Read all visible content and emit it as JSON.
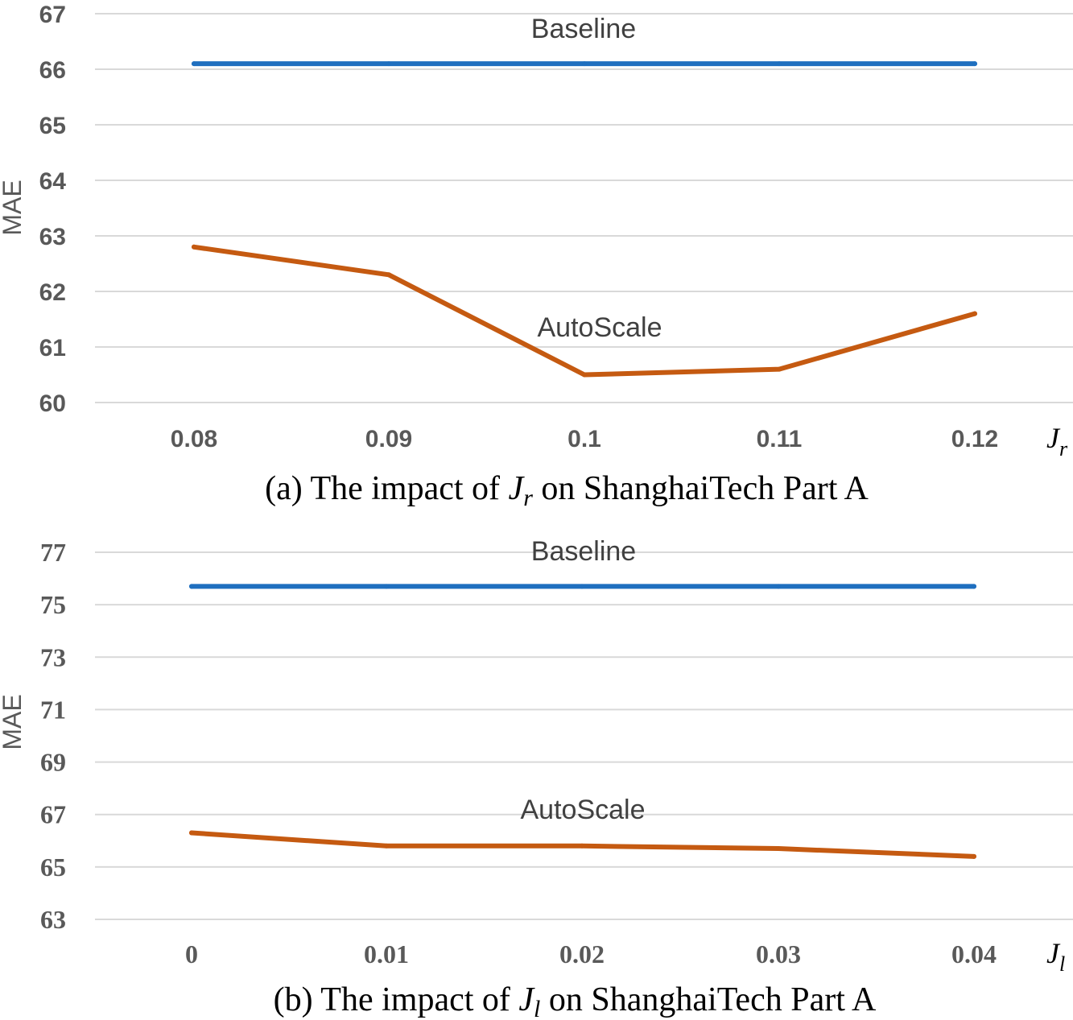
{
  "chart_data": [
    {
      "type": "line",
      "caption": {
        "prefix": "(a) The impact of ",
        "symbol": "J",
        "subscript": "r",
        "suffix": " on ShanghaiTech Part A"
      },
      "categories": [
        "0.08",
        "0.09",
        "0.1",
        "0.11",
        "0.12"
      ],
      "yticks": [
        "60",
        "61",
        "62",
        "63",
        "64",
        "65",
        "66",
        "67"
      ],
      "ylim": [
        60,
        67
      ],
      "ylabel": "MAE",
      "xaxis_symbol": "J",
      "xaxis_subscript": "r",
      "series": [
        {
          "name": "Baseline",
          "color": "#1f6fbf",
          "values": [
            66.1,
            66.1,
            66.1,
            66.1,
            66.1
          ]
        },
        {
          "name": "AutoScale",
          "color": "#c55a11",
          "values": [
            62.8,
            62.3,
            60.5,
            60.6,
            61.6
          ]
        }
      ]
    },
    {
      "type": "line",
      "caption": {
        "prefix": "(b) The impact of ",
        "symbol": "J",
        "subscript": "l",
        "suffix": " on ShanghaiTech Part A"
      },
      "categories": [
        "0",
        "0.01",
        "0.02",
        "0.03",
        "0.04"
      ],
      "yticks": [
        "63",
        "65",
        "67",
        "69",
        "71",
        "73",
        "75",
        "77"
      ],
      "ylim": [
        63,
        77
      ],
      "ylabel": "MAE",
      "xaxis_symbol": "J",
      "xaxis_subscript": "l",
      "series": [
        {
          "name": "Baseline",
          "color": "#1f6fbf",
          "values": [
            75.7,
            75.7,
            75.7,
            75.7,
            75.7
          ]
        },
        {
          "name": "AutoScale",
          "color": "#c55a11",
          "values": [
            66.3,
            65.8,
            65.8,
            65.7,
            65.4
          ]
        }
      ]
    }
  ]
}
